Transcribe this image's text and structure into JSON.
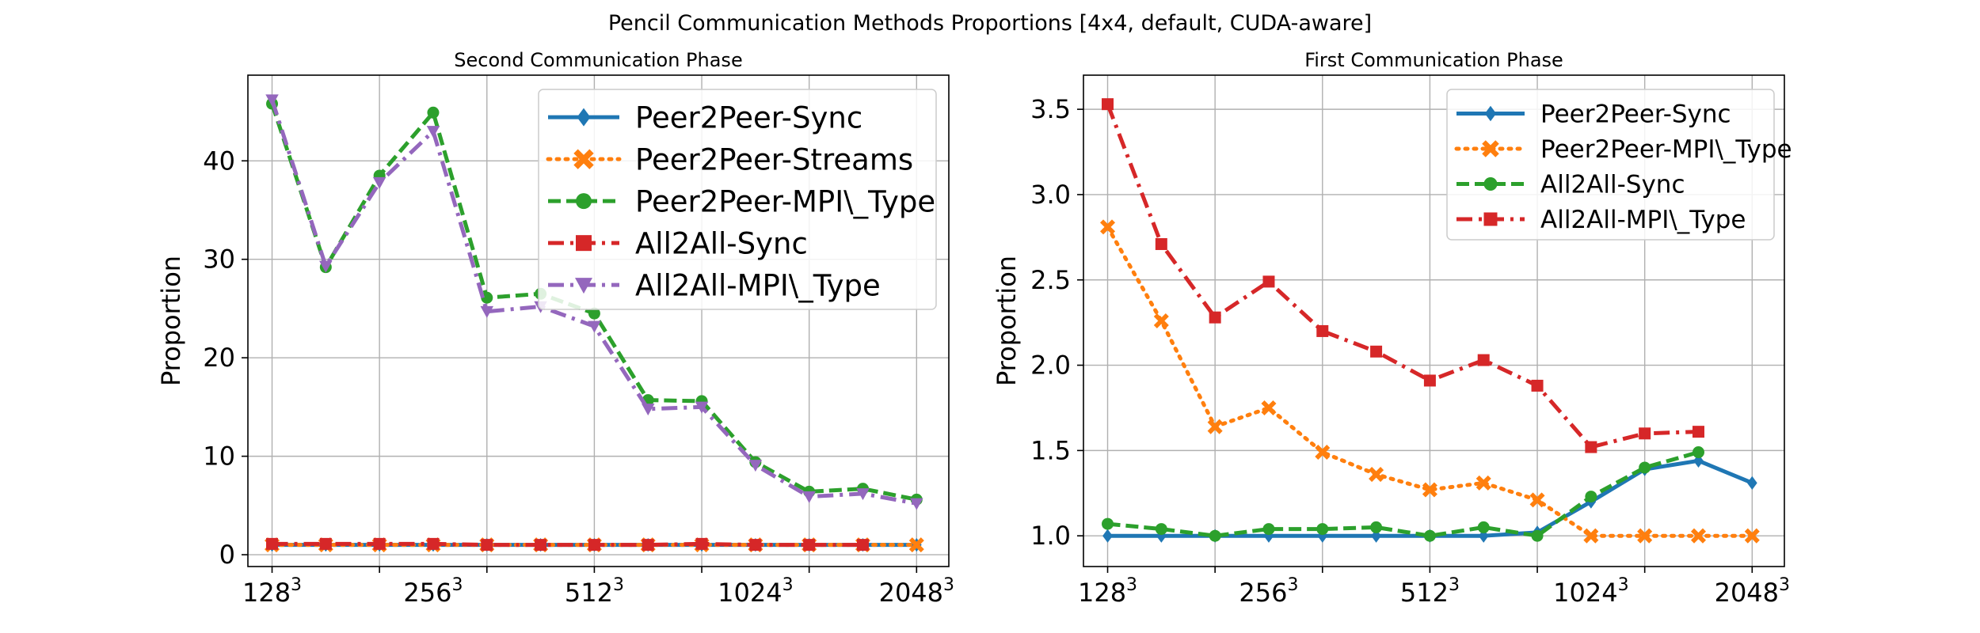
{
  "figure": {
    "suptitle": "Pencil Communication Methods Proportions [4x4, default, CUDA-aware]"
  },
  "chart_data": [
    {
      "type": "line",
      "title": "Second Communication Phase",
      "xlabel": "",
      "ylabel": "Proportion",
      "x_tick_positions": [
        0,
        2,
        4,
        6,
        8,
        10,
        12
      ],
      "x_tick_labels": [
        {
          "base": "128",
          "exp": "3"
        },
        {
          "base": "256",
          "exp": "3"
        },
        {
          "base": "512",
          "exp": "3"
        },
        {
          "base": "1024",
          "exp": "3"
        },
        {
          "base": "2048",
          "exp": "3"
        }
      ],
      "labeled_ticks": [
        0,
        3,
        6,
        9,
        12
      ],
      "xlim": [
        -0.45,
        12.6
      ],
      "ylim": [
        -1.2,
        48.7
      ],
      "yticks": [
        0,
        10,
        20,
        30,
        40
      ],
      "grid": true,
      "legend_position": "top-right",
      "series": [
        {
          "name": "Peer2Peer-Sync",
          "color": "#1f77b4",
          "style": "solid",
          "marker": "diamond",
          "x": [
            0,
            1,
            2,
            3,
            4,
            5,
            6,
            7,
            8,
            9,
            10,
            11,
            12
          ],
          "y": [
            1.0,
            1.0,
            1.0,
            1.0,
            1.0,
            1.0,
            1.0,
            1.0,
            1.0,
            1.0,
            1.0,
            1.0,
            1.0
          ]
        },
        {
          "name": "Peer2Peer-Streams",
          "color": "#ff7f0e",
          "style": "dotted",
          "marker": "x",
          "x": [
            0,
            1,
            2,
            3,
            4,
            5,
            6,
            7,
            8,
            9,
            10,
            11,
            12
          ],
          "y": [
            1.0,
            1.0,
            1.0,
            1.0,
            1.0,
            1.0,
            1.0,
            1.0,
            1.0,
            1.0,
            1.0,
            1.0,
            1.0
          ]
        },
        {
          "name": "Peer2Peer-MPI\\_Type",
          "color": "#2ca02c",
          "style": "dashed",
          "marker": "circle",
          "x": [
            0,
            1,
            2,
            3,
            4,
            5,
            6,
            7,
            8,
            9,
            10,
            11,
            12
          ],
          "y": [
            45.8,
            29.2,
            38.5,
            44.9,
            26.1,
            26.5,
            24.5,
            15.7,
            15.6,
            9.4,
            6.4,
            6.7,
            5.6
          ]
        },
        {
          "name": "All2All-Sync",
          "color": "#d62728",
          "style": "dashdot",
          "marker": "square",
          "x": [
            0,
            1,
            2,
            3,
            4,
            5,
            6,
            7,
            8,
            9,
            10,
            11
          ],
          "y": [
            1.1,
            1.1,
            1.1,
            1.1,
            1.0,
            1.0,
            1.0,
            1.0,
            1.1,
            1.0,
            1.0,
            1.0
          ]
        },
        {
          "name": "All2All-MPI\\_Type",
          "color": "#9467bd",
          "style": "dashdot",
          "marker": "triangle-down",
          "x": [
            0,
            1,
            2,
            3,
            4,
            5,
            6,
            7,
            8,
            9,
            10,
            11,
            12
          ],
          "y": [
            46.2,
            29.3,
            37.8,
            43.0,
            24.7,
            25.2,
            23.2,
            14.8,
            15.0,
            9.1,
            5.9,
            6.2,
            5.2
          ]
        }
      ]
    },
    {
      "type": "line",
      "title": "First Communication Phase",
      "xlabel": "",
      "ylabel": "Proportion",
      "x_tick_positions": [
        0,
        2,
        4,
        6,
        8,
        10,
        12
      ],
      "x_tick_labels": [
        {
          "base": "128",
          "exp": "3"
        },
        {
          "base": "256",
          "exp": "3"
        },
        {
          "base": "512",
          "exp": "3"
        },
        {
          "base": "1024",
          "exp": "3"
        },
        {
          "base": "2048",
          "exp": "3"
        }
      ],
      "labeled_ticks": [
        0,
        3,
        6,
        9,
        12
      ],
      "xlim": [
        -0.45,
        12.6
      ],
      "ylim": [
        0.82,
        3.7
      ],
      "yticks": [
        1.0,
        1.5,
        2.0,
        2.5,
        3.0,
        3.5
      ],
      "grid": true,
      "legend_position": "top-right",
      "series": [
        {
          "name": "Peer2Peer-Sync",
          "color": "#1f77b4",
          "style": "solid",
          "marker": "diamond",
          "x": [
            0,
            1,
            2,
            3,
            4,
            5,
            6,
            7,
            8,
            9,
            10,
            11,
            12
          ],
          "y": [
            1.0,
            1.0,
            1.0,
            1.0,
            1.0,
            1.0,
            1.0,
            1.0,
            1.02,
            1.2,
            1.39,
            1.44,
            1.31
          ]
        },
        {
          "name": "Peer2Peer-MPI\\_Type",
          "color": "#ff7f0e",
          "style": "dotted",
          "marker": "x",
          "x": [
            0,
            1,
            2,
            3,
            4,
            5,
            6,
            7,
            8,
            9,
            10,
            11,
            12
          ],
          "y": [
            2.81,
            2.26,
            1.64,
            1.75,
            1.49,
            1.36,
            1.27,
            1.31,
            1.21,
            1.0,
            1.0,
            1.0,
            1.0
          ]
        },
        {
          "name": "All2All-Sync",
          "color": "#2ca02c",
          "style": "dashed",
          "marker": "circle",
          "x": [
            0,
            1,
            2,
            3,
            4,
            5,
            6,
            7,
            8,
            9,
            10,
            11
          ],
          "y": [
            1.07,
            1.04,
            1.0,
            1.04,
            1.04,
            1.05,
            1.0,
            1.05,
            1.0,
            1.23,
            1.4,
            1.49
          ]
        },
        {
          "name": "All2All-MPI\\_Type",
          "color": "#d62728",
          "style": "dashdot",
          "marker": "square",
          "x": [
            0,
            1,
            2,
            3,
            4,
            5,
            6,
            7,
            8,
            9,
            10,
            11
          ],
          "y": [
            3.53,
            2.71,
            2.28,
            2.49,
            2.2,
            2.08,
            1.91,
            2.03,
            1.88,
            1.52,
            1.6,
            1.61
          ]
        }
      ]
    }
  ]
}
